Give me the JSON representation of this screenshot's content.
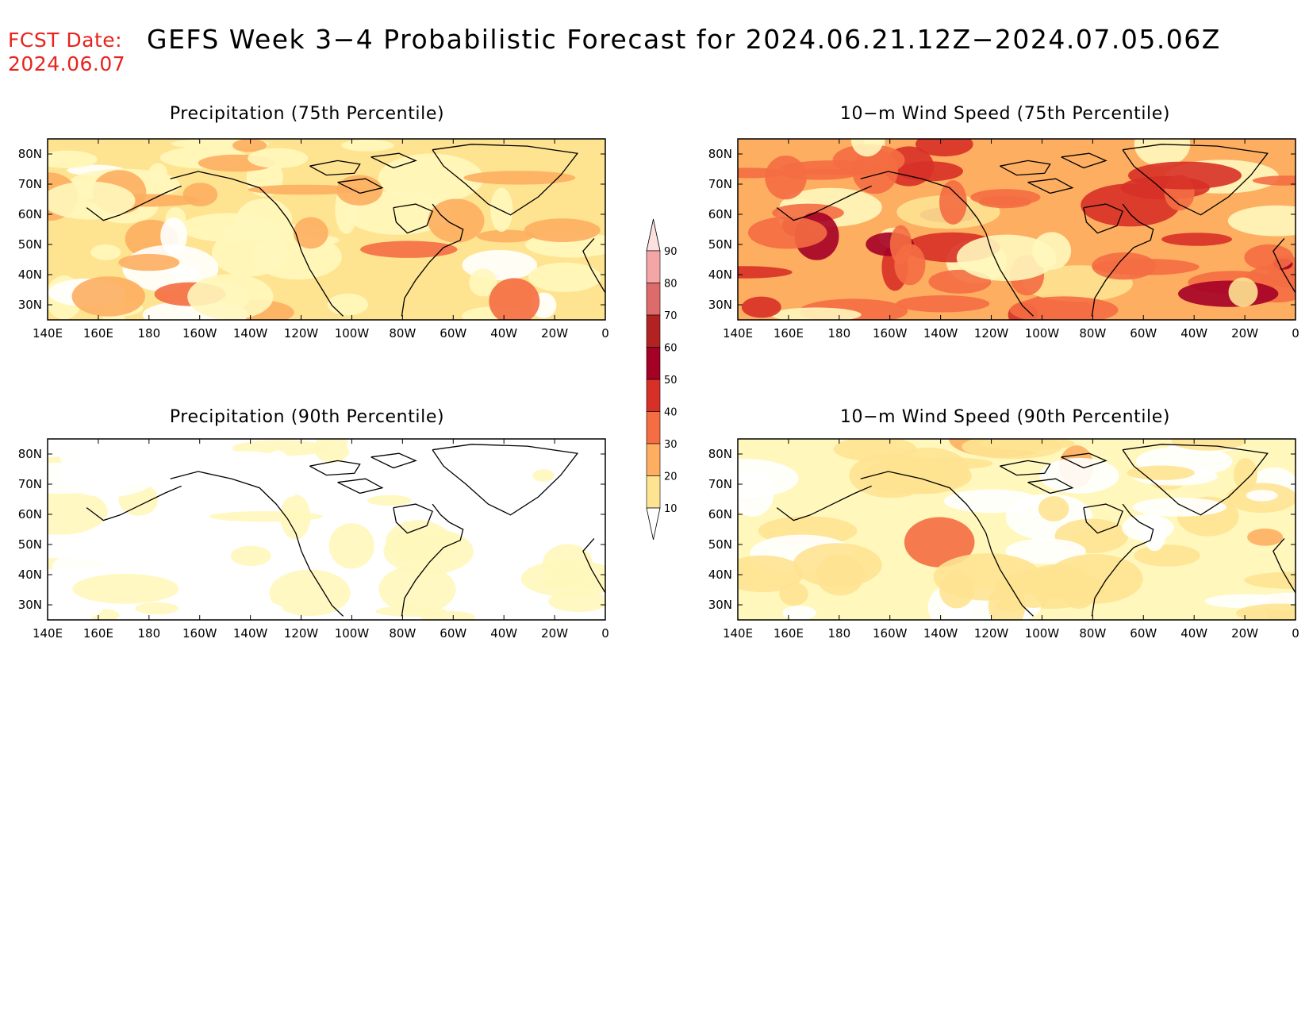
{
  "header": {
    "fcst_label": "FCST Date:",
    "fcst_date": "2024.06.07",
    "title": "GEFS Week 3−4 Probabilistic Forecast for 2024.06.21.12Z−2024.07.05.06Z"
  },
  "axes": {
    "lon_ticks": [
      "140E",
      "160E",
      "180",
      "160W",
      "140W",
      "120W",
      "100W",
      "80W",
      "60W",
      "40W",
      "20W",
      "0"
    ],
    "lat_ticks": [
      "80N",
      "70N",
      "60N",
      "50N",
      "40N",
      "30N"
    ]
  },
  "colorbar": {
    "levels": [
      "10",
      "20",
      "30",
      "40",
      "50",
      "60",
      "70",
      "80",
      "90"
    ],
    "colors": [
      "#fff7bc",
      "#fee391",
      "#fdae61",
      "#f46d43",
      "#d73027",
      "#a50026",
      "#b22222",
      "#de6b6b",
      "#f4a6a6",
      "#fde0e0"
    ]
  },
  "panels": [
    {
      "id": "precip-75",
      "title": "Precipitation (75th Percentile)",
      "dominant": "20–30",
      "intensity": 1
    },
    {
      "id": "wind-75",
      "title": "10−m Wind Speed (75th Percentile)",
      "dominant": "30–40",
      "intensity": 3
    },
    {
      "id": "precip-90",
      "title": "Precipitation (90th Percentile)",
      "dominant": "<10–20",
      "intensity": 0
    },
    {
      "id": "wind-90",
      "title": "10−m Wind Speed (90th Percentile)",
      "dominant": "10–20",
      "intensity": 0.6
    }
  ]
}
